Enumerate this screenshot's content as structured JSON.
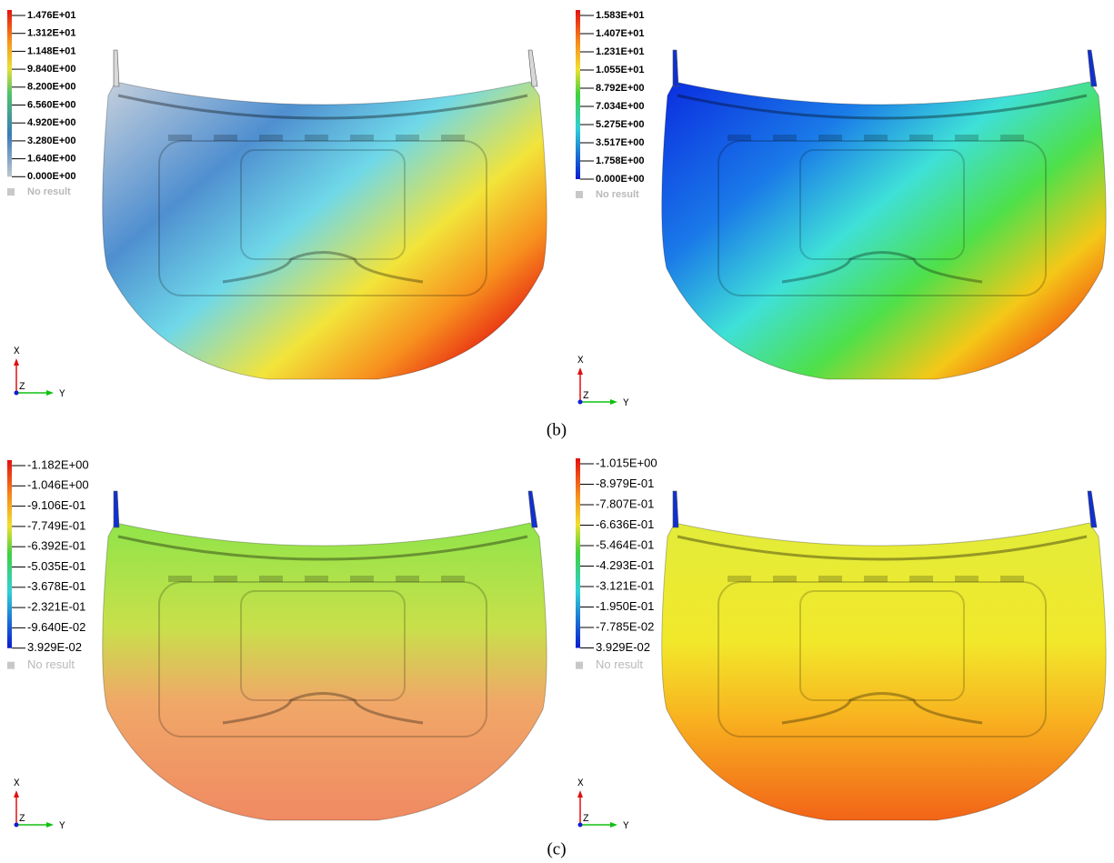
{
  "panels": [
    {
      "legend": {
        "labels": [
          "1.476E+01",
          "1.312E+01",
          "1.148E+01",
          "9.840E+00",
          "8.200E+00",
          "6.560E+00",
          "4.920E+00",
          "3.280E+00",
          "1.640E+00",
          "0.000E+00"
        ],
        "no_result": "No result"
      },
      "triad": {
        "x": "X",
        "y": "Y",
        "z": "Z"
      }
    },
    {
      "legend": {
        "labels": [
          "1.583E+01",
          "1.407E+01",
          "1.231E+01",
          "1.055E+01",
          "8.792E+00",
          "7.034E+00",
          "5.275E+00",
          "3.517E+00",
          "1.758E+00",
          "0.000E+00"
        ],
        "no_result": "No result"
      },
      "triad": {
        "x": "X",
        "y": "Y",
        "z": "Z"
      }
    },
    {
      "legend": {
        "labels": [
          "-1.182E+00",
          "-1.046E+00",
          "-9.106E-01",
          "-7.749E-01",
          "-6.392E-01",
          "-5.035E-01",
          "-3.678E-01",
          "-2.321E-01",
          "-9.640E-02",
          "3.929E-02"
        ],
        "no_result": "No result"
      },
      "triad": {
        "x": "X",
        "y": "Y",
        "z": "Z"
      }
    },
    {
      "legend": {
        "labels": [
          "-1.015E+00",
          "-8.979E-01",
          "-7.807E-01",
          "-6.636E-01",
          "-5.464E-01",
          "-4.293E-01",
          "-3.121E-01",
          "-1.950E-01",
          "-7.785E-02",
          "3.929E-02"
        ],
        "no_result": "No result"
      },
      "triad": {
        "x": "X",
        "y": "Y",
        "z": "Z"
      }
    }
  ],
  "captions": [
    "(b)",
    "(c)"
  ]
}
